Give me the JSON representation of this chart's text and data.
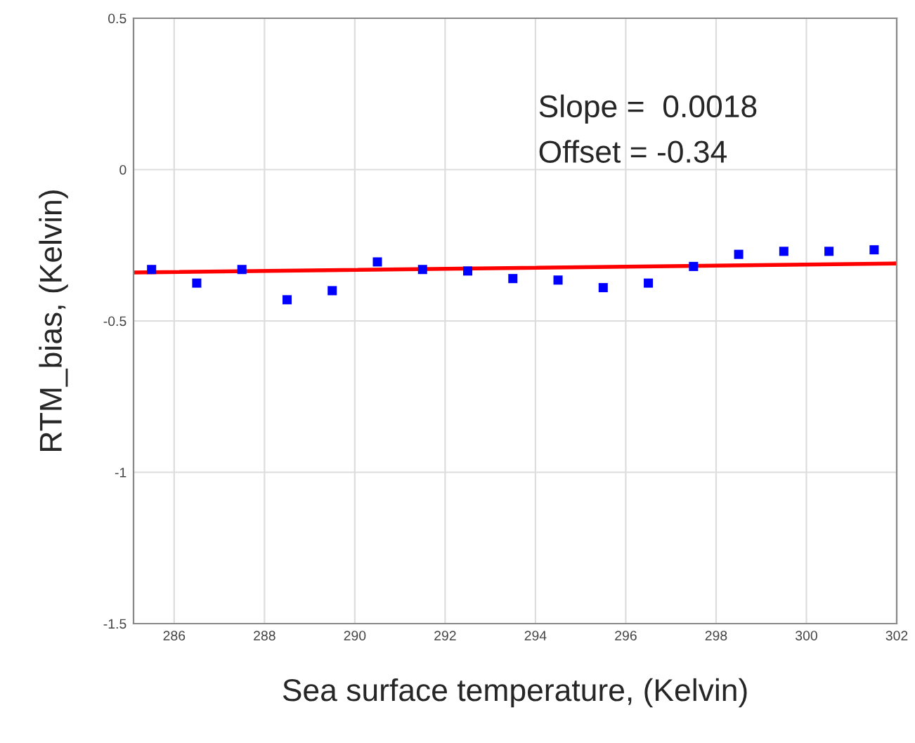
{
  "chart_data": {
    "type": "scatter",
    "xlabel": "Sea surface temperature, (Kelvin)",
    "ylabel": "RTM_bias, (Kelvin)",
    "x": [
      285.5,
      286.5,
      287.5,
      288.5,
      289.5,
      290.5,
      291.5,
      292.5,
      293.5,
      294.5,
      295.5,
      296.5,
      297.5,
      298.5,
      299.5,
      300.5,
      301.5
    ],
    "series": [
      {
        "color": "#0000ff",
        "marker": "square",
        "values": [
          -0.33,
          -0.375,
          -0.33,
          -0.43,
          -0.4,
          -0.305,
          -0.33,
          -0.335,
          -0.36,
          -0.365,
          -0.39,
          -0.375,
          -0.32,
          -0.28,
          -0.27,
          -0.27,
          -0.265
        ]
      },
      {
        "type": "line",
        "color": "#ff0000",
        "x": [
          285.1,
          302
        ],
        "values": [
          -0.34,
          -0.31
        ],
        "line_style": "solid",
        "marker": "none"
      }
    ],
    "annotations": [
      "Slope =  0.0018",
      "Offset = -0.34"
    ],
    "xlim": [
      285.1,
      302
    ],
    "xticks": [
      286,
      288,
      290,
      292,
      294,
      296,
      298,
      300,
      302
    ],
    "ylim": [
      -1.5,
      0.5
    ],
    "yticks": [
      -1.5,
      -1,
      -0.5,
      0,
      0.5
    ],
    "grid": true
  }
}
